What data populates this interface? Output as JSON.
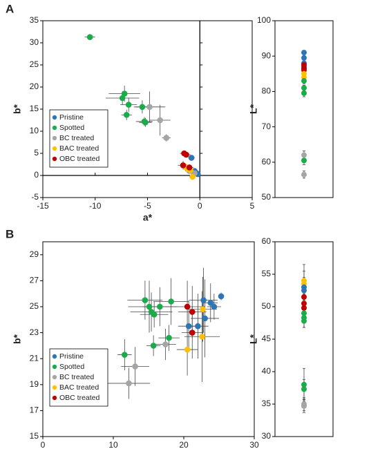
{
  "chart_data": [
    {
      "type": "scatter",
      "label": "A",
      "xlabel": "a*",
      "ylabel": "b*",
      "xlim": [
        -15,
        5
      ],
      "ylim": [
        -5,
        35
      ],
      "xticks": [
        -15,
        -10,
        -5,
        0,
        5
      ],
      "yticks": [
        -5,
        0,
        5,
        10,
        15,
        20,
        25,
        30,
        35
      ],
      "zero_axes": true,
      "legend": "lower left",
      "series": [
        {
          "name": "Pristine",
          "color": "#2e75b6",
          "x": [
            -0.5,
            -0.3,
            -0.8,
            -0.2,
            -0.6
          ],
          "y": [
            1,
            0.5,
            4,
            0.3,
            0.8
          ],
          "xerr": [
            0.3,
            0.3,
            0.3,
            0.3,
            0.3
          ],
          "yerr": [
            0.5,
            0.5,
            0.6,
            0.5,
            0.5
          ]
        },
        {
          "name": "Spotted",
          "color": "#1aab4b",
          "x": [
            -10.5,
            -7.2,
            -7.4,
            -6.8,
            -5.5,
            -7,
            -5.3,
            -5.2
          ],
          "y": [
            31.3,
            18.5,
            17.5,
            16,
            15.5,
            13.7,
            12.2,
            12
          ],
          "xerr": [
            0.5,
            1.5,
            1.6,
            0.8,
            0.6,
            0.5,
            0.8,
            0.6
          ],
          "yerr": [
            0.4,
            1.8,
            1.5,
            1.6,
            1.5,
            1.2,
            1.0,
            1.0
          ]
        },
        {
          "name": "BC treated",
          "color": "#a5a5a5",
          "x": [
            -4.8,
            -3.8,
            -3.2,
            -1,
            -0.5
          ],
          "y": [
            15.5,
            12.5,
            8.5,
            1,
            0.5
          ],
          "xerr": [
            1.5,
            1.0,
            0.4,
            0.4,
            0.3
          ],
          "yerr": [
            3.5,
            3.5,
            0.8,
            0.6,
            0.5
          ]
        },
        {
          "name": "BAC treated",
          "color": "#ffc000",
          "x": [
            -1.2,
            -0.9,
            -0.7,
            -1.4
          ],
          "y": [
            1.5,
            1.2,
            -0.3,
            2
          ],
          "xerr": [
            0.4,
            0.4,
            0.3,
            0.4
          ],
          "yerr": [
            0.6,
            0.6,
            0.5,
            0.6
          ]
        },
        {
          "name": "OBC treated",
          "color": "#c00000",
          "x": [
            -1.5,
            -1.3,
            -1.6,
            -1
          ],
          "y": [
            5,
            4.7,
            2.3,
            1.8
          ],
          "xerr": [
            0.4,
            0.4,
            0.5,
            0.4
          ],
          "yerr": [
            0.6,
            0.6,
            1.0,
            0.7
          ]
        }
      ]
    },
    {
      "type": "strip",
      "ylabel": "L*",
      "ylim": [
        50,
        100
      ],
      "yticks": [
        50,
        60,
        70,
        80,
        90,
        100
      ],
      "series": [
        {
          "color": "#2e75b6",
          "values": [
            91,
            89.5,
            88,
            87
          ],
          "err": [
            0.6,
            0.6,
            0.6,
            0.6
          ]
        },
        {
          "color": "#c00000",
          "values": [
            86.5,
            87.5,
            86
          ],
          "err": [
            0.6,
            0.6,
            0.6
          ]
        },
        {
          "color": "#ffc000",
          "values": [
            85,
            84
          ],
          "err": [
            0.6,
            0.6
          ]
        },
        {
          "color": "#1aab4b",
          "values": [
            83,
            81,
            79.5,
            60.5
          ],
          "err": [
            0.8,
            0.8,
            1.0,
            1.2
          ]
        },
        {
          "color": "#a5a5a5",
          "values": [
            62,
            56.5
          ],
          "err": [
            1.2,
            1.0
          ]
        }
      ]
    },
    {
      "type": "scatter",
      "label": "B",
      "xlabel": "a*",
      "ylabel": "b*",
      "xlim": [
        0,
        30
      ],
      "ylim": [
        15,
        30
      ],
      "xticks": [
        0,
        10,
        20,
        30
      ],
      "yticks": [
        15,
        17,
        19,
        21,
        23,
        25,
        27,
        29
      ],
      "zero_axes": false,
      "legend": "lower left",
      "series": [
        {
          "name": "Pristine",
          "color": "#2e75b6",
          "x": [
            25.3,
            23.8,
            22.8,
            24.3,
            22,
            23,
            20.7
          ],
          "y": [
            25.8,
            25.3,
            25.5,
            25,
            23.5,
            24.1,
            23.5
          ],
          "xerr": [
            0.4,
            1.0,
            2.0,
            1.0,
            1.5,
            2.0,
            1.5
          ],
          "yerr": [
            0.3,
            1.5,
            2.5,
            1.0,
            2.5,
            3.0,
            2.0
          ]
        },
        {
          "name": "Spotted",
          "color": "#1aab4b",
          "x": [
            14.5,
            15.1,
            15.4,
            15.8,
            16.6,
            18.2,
            17.9,
            15.7,
            11.6
          ],
          "y": [
            25.5,
            25.0,
            24.6,
            24.4,
            25.0,
            25.4,
            22.6,
            22.0,
            21.3
          ],
          "xerr": [
            2.5,
            3.0,
            3.0,
            2.0,
            2.5,
            2.5,
            1.5,
            1.0,
            1.0
          ],
          "yerr": [
            1.5,
            2.0,
            1.5,
            1.0,
            1.5,
            1.8,
            1.0,
            0.8,
            1.2
          ]
        },
        {
          "name": "BC treated",
          "color": "#a5a5a5",
          "x": [
            17.4,
            13.1,
            12.2
          ],
          "y": [
            22.1,
            20.4,
            19.1
          ],
          "xerr": [
            1.5,
            2.0,
            3.0
          ],
          "yerr": [
            1.2,
            1.5,
            1.2
          ]
        },
        {
          "name": "BAC treated",
          "color": "#ffc000",
          "x": [
            22.7,
            22.6,
            20.5
          ],
          "y": [
            24.8,
            22.7,
            21.7
          ],
          "xerr": [
            2.0,
            2.5,
            1.5
          ],
          "yerr": [
            2.5,
            3.5,
            2.0
          ]
        },
        {
          "name": "OBC treated",
          "color": "#c00000",
          "x": [
            20.5,
            21.2,
            21.2
          ],
          "y": [
            25.0,
            24.6,
            23.0
          ],
          "xerr": [
            2.5,
            2.0,
            1.5
          ],
          "yerr": [
            2.0,
            2.0,
            2.0
          ]
        }
      ]
    },
    {
      "type": "strip",
      "ylabel": "L*",
      "ylim": [
        30,
        60
      ],
      "yticks": [
        30,
        35,
        40,
        45,
        50,
        55,
        60
      ],
      "series": [
        {
          "color": "#ffc000",
          "values": [
            54,
            53.5
          ],
          "err": [
            2.5,
            2.0
          ]
        },
        {
          "color": "#2e75b6",
          "values": [
            53,
            52.5
          ],
          "err": [
            1.5,
            1.5
          ]
        },
        {
          "color": "#c00000",
          "values": [
            51.5,
            50.5,
            49.8
          ],
          "err": [
            1.5,
            1.5,
            1.5
          ]
        },
        {
          "color": "#1aab4b",
          "values": [
            49,
            48.3,
            47.8,
            38,
            37.3
          ],
          "err": [
            1.5,
            1.5,
            1.0,
            2.5,
            1.5
          ]
        },
        {
          "color": "#a5a5a5",
          "values": [
            35,
            34.7
          ],
          "err": [
            1.0,
            1.0
          ]
        }
      ]
    }
  ]
}
